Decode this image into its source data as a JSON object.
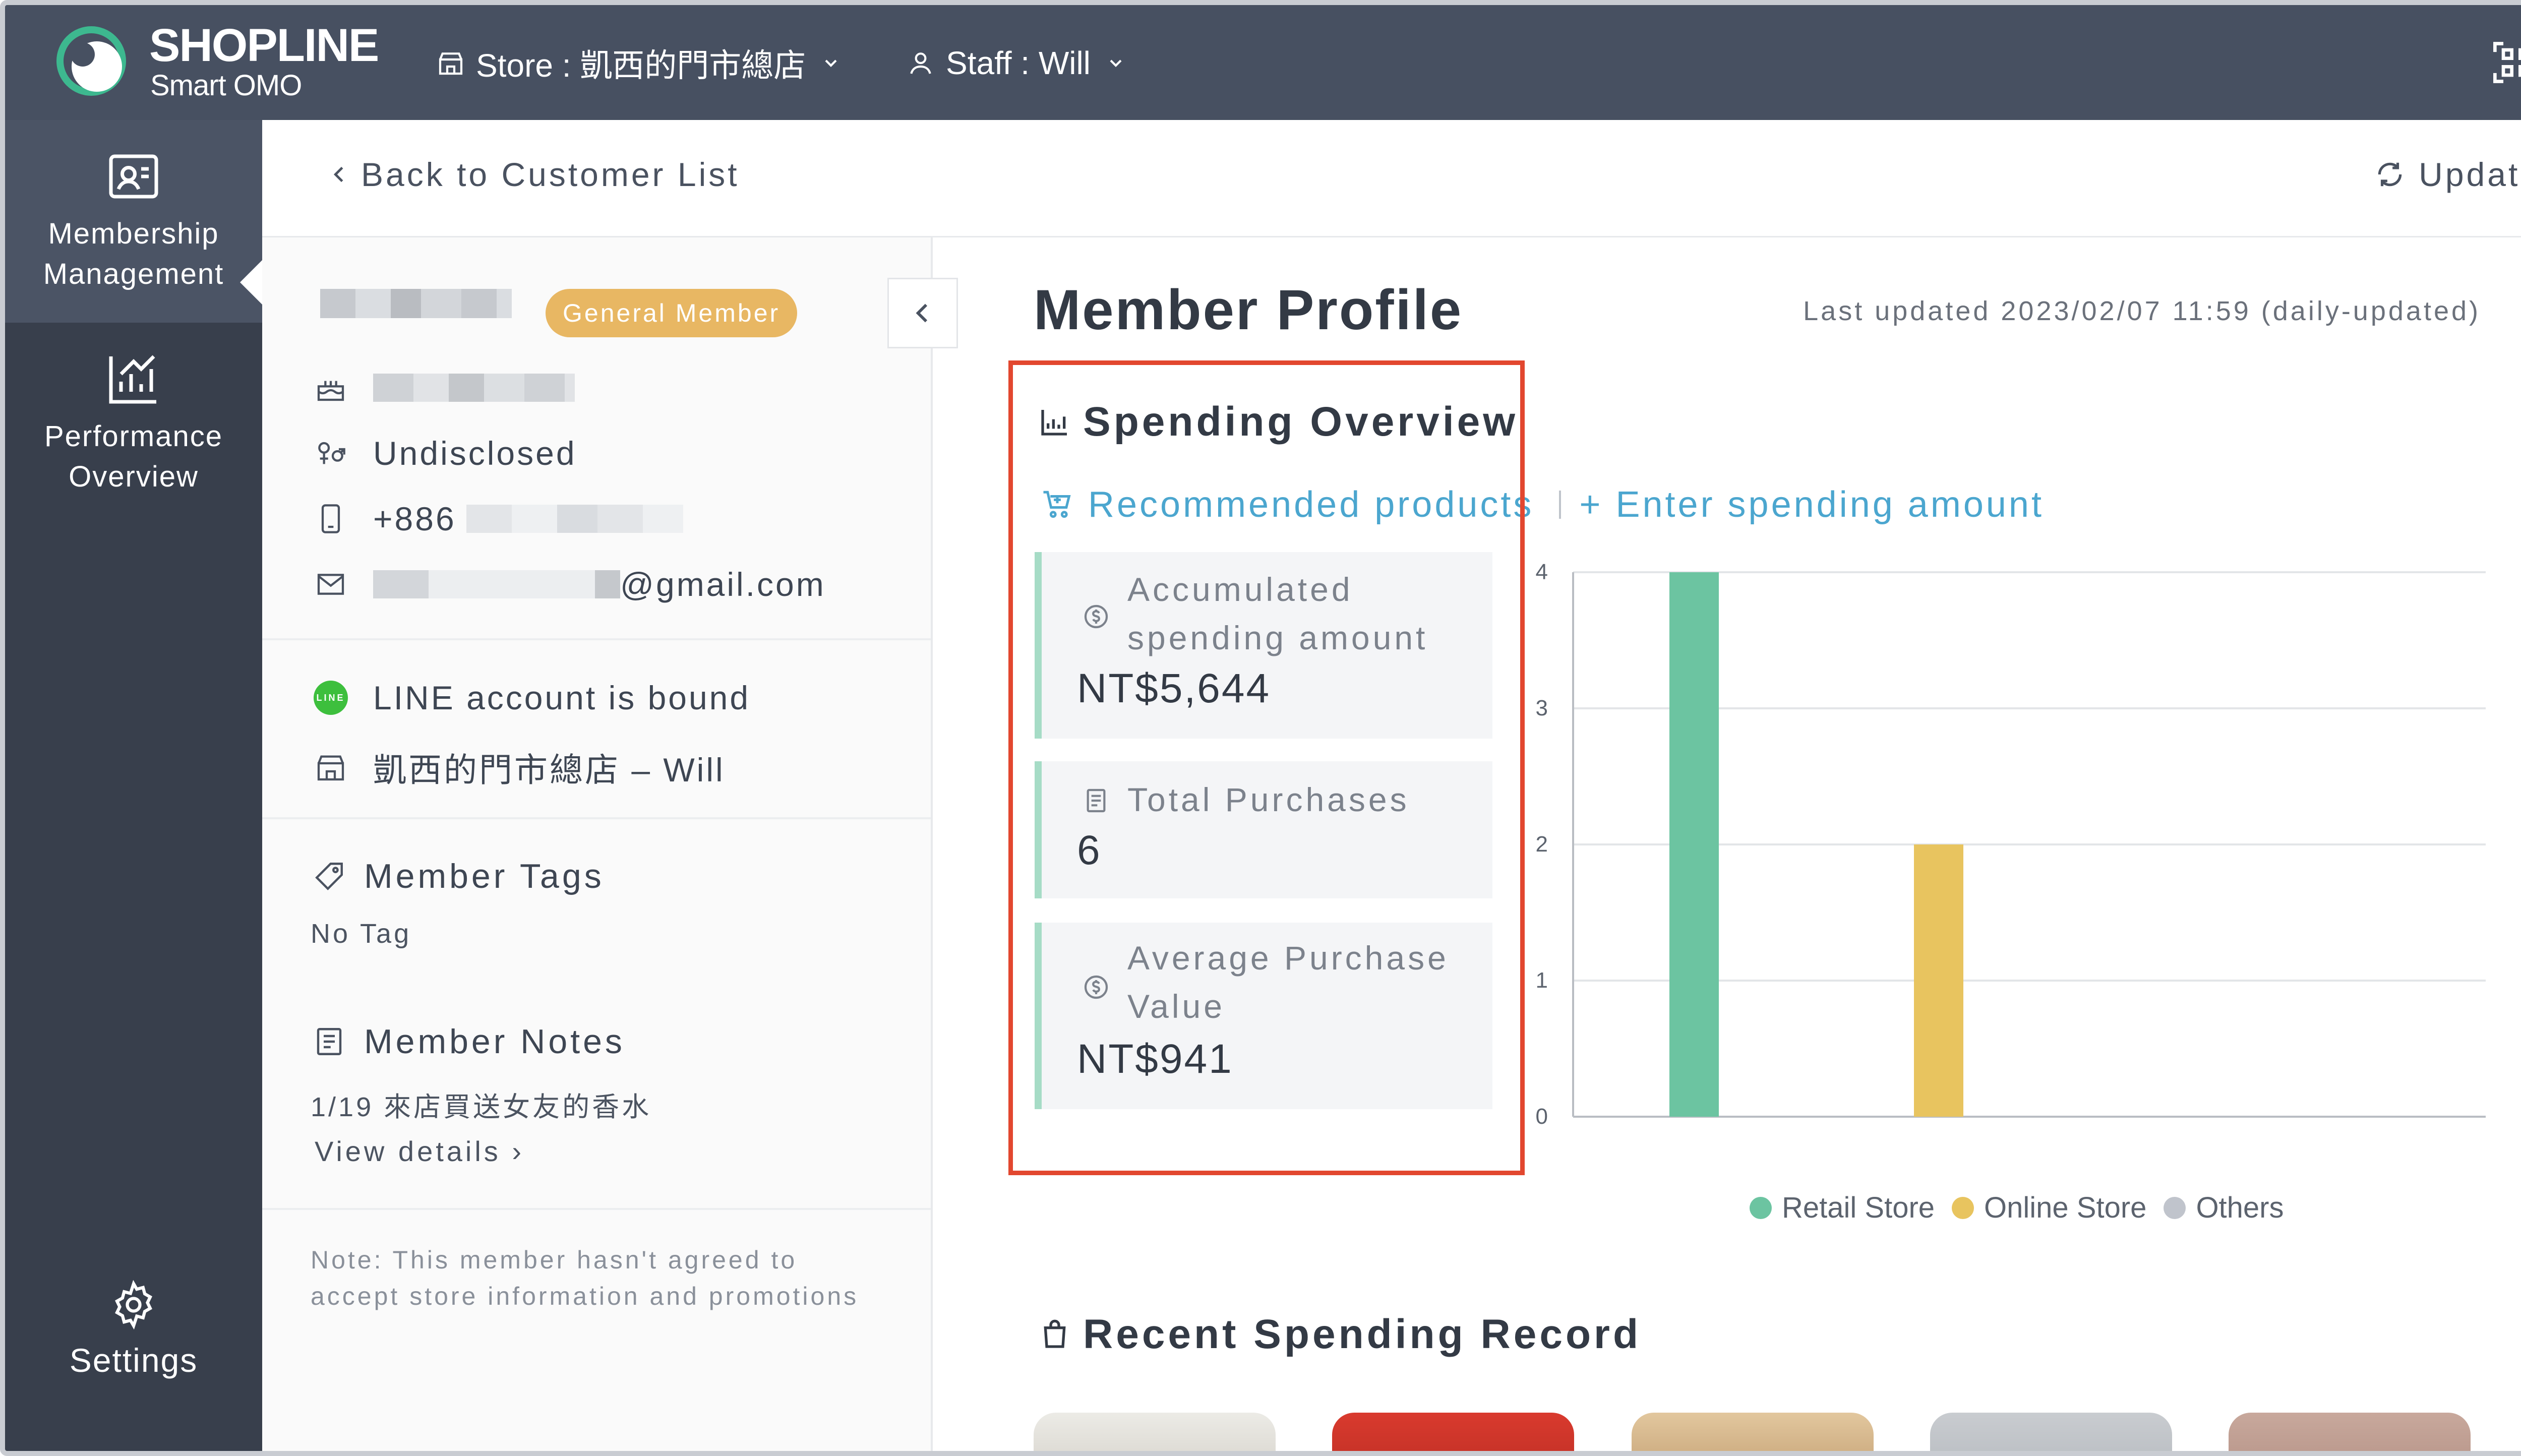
{
  "header": {
    "brand_name": "SHOPLINE",
    "brand_sub": "Smart OMO",
    "store_selector": "Store : 凱西的門市總店",
    "staff_selector": "Staff : Will"
  },
  "sidebar": {
    "items": [
      {
        "label_line1": "Membership",
        "label_line2": "Management",
        "icon": "member-card-icon",
        "active": true
      },
      {
        "label_line1": "Performance",
        "label_line2": "Overview",
        "icon": "chart-icon",
        "active": false
      }
    ],
    "settings_label": "Settings"
  },
  "toolbar": {
    "back_label": "Back to Customer List",
    "update_label": "Update"
  },
  "member": {
    "badge": "General Member",
    "gender": "Undisclosed",
    "phone_prefix": "+886",
    "email_suffix": "@gmail.com",
    "line_status": "LINE account is bound",
    "store_staff": "凱西的門市總店 – Will",
    "tags_title": "Member Tags",
    "tags_value": "No Tag",
    "notes_title": "Member Notes",
    "notes_value": "1/19 來店買送女友的香水",
    "view_details": "View details",
    "consent_note": "Note: This member hasn't agreed to accept store information and promotions"
  },
  "profile": {
    "title": "Member Profile",
    "last_updated": "Last updated 2023/02/07 11:59 (daily-updated)",
    "spending_title": "Spending Overview",
    "recommended_link": "Recommended products",
    "enter_amount_link": "+ Enter spending amount",
    "stats": [
      {
        "label": "Accumulated spending amount",
        "value": "NT$5,644",
        "icon": "dollar-icon"
      },
      {
        "label": "Total Purchases",
        "value": "6",
        "icon": "receipt-icon"
      },
      {
        "label": "Average Purchase Value",
        "value": "NT$941",
        "icon": "dollar-icon"
      }
    ],
    "recent_title": "Recent Spending Record"
  },
  "colors": {
    "topbar": "#475061",
    "sidebar": "#383f4c",
    "accent_link": "#4ba6cf",
    "badge": "#e8b763",
    "highlight": "#e2472f"
  },
  "chart_data": {
    "type": "bar",
    "categories": [
      "Retail Store",
      "Online Store",
      "Others"
    ],
    "values": [
      4,
      2,
      0
    ],
    "colors": [
      "#6cc4a1",
      "#e8c45f",
      "#c0c4cc"
    ],
    "ylim": [
      0,
      4
    ],
    "yticks": [
      "0",
      "1",
      "2",
      "3",
      "4"
    ],
    "grid": true,
    "legend_position": "bottom"
  }
}
